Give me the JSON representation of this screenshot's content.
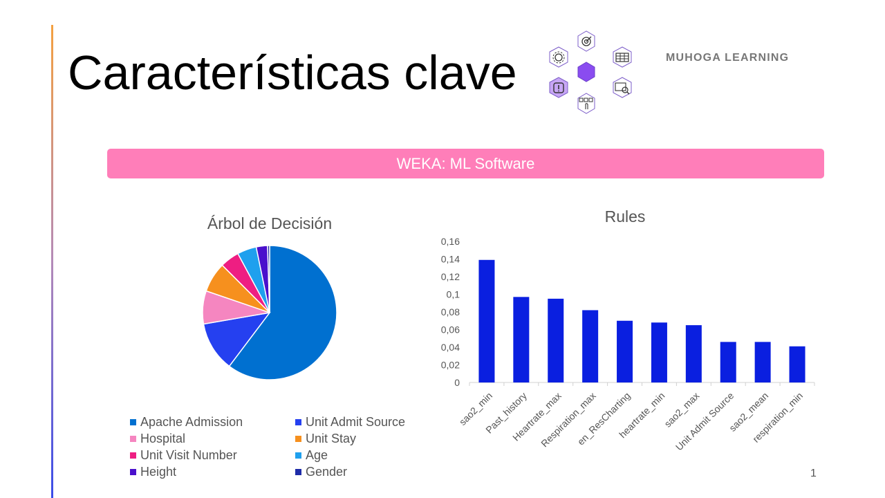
{
  "slide": {
    "title": "Características clave",
    "brand": "MUHOGA LEARNING",
    "banner": "WEKA: ML Software",
    "page_number": "1"
  },
  "icons": {
    "hex_icons": [
      "target-icon",
      "gear-icon",
      "table-icon",
      "warning-icon",
      "touch-select-icon",
      "chart-search-icon"
    ]
  },
  "chart_data": [
    {
      "type": "pie",
      "title": "Árbol de Decisión",
      "categories": [
        "Apache Admission",
        "Unit Admit Source",
        "Hospital",
        "Unit Stay",
        "Unit Visit Number",
        "Age",
        "Height",
        "Gender"
      ],
      "values": [
        59.8,
        11.9,
        7.9,
        7.2,
        4.6,
        4.6,
        2.7,
        0.5
      ],
      "colors": [
        "#0070d0",
        "#2540f0",
        "#f586c0",
        "#f6901e",
        "#ee1e82",
        "#1fa0ee",
        "#4a10cc",
        "#1e2ca8"
      ],
      "legend_position": "bottom"
    },
    {
      "type": "bar",
      "title": "Rules",
      "categories": [
        "sao2_min",
        "Past_history",
        "Heartrate_max",
        "Respiration_max",
        "en_ResCharting",
        "heartrate_min",
        "sao2_max",
        "Unit Admit Source",
        "sao2_mean",
        "respiration_min"
      ],
      "values": [
        0.139,
        0.097,
        0.095,
        0.082,
        0.07,
        0.068,
        0.065,
        0.046,
        0.046,
        0.041
      ],
      "ylim": [
        0,
        0.16
      ],
      "yticks": [
        0,
        0.02,
        0.04,
        0.06,
        0.08,
        0.1,
        0.12,
        0.14,
        0.16
      ],
      "ytick_labels": [
        "0",
        "0,02",
        "0,04",
        "0,06",
        "0,08",
        "0,1",
        "0,12",
        "0,14",
        "0,16"
      ],
      "bar_color": "#0a1fe0",
      "grid": false
    }
  ]
}
